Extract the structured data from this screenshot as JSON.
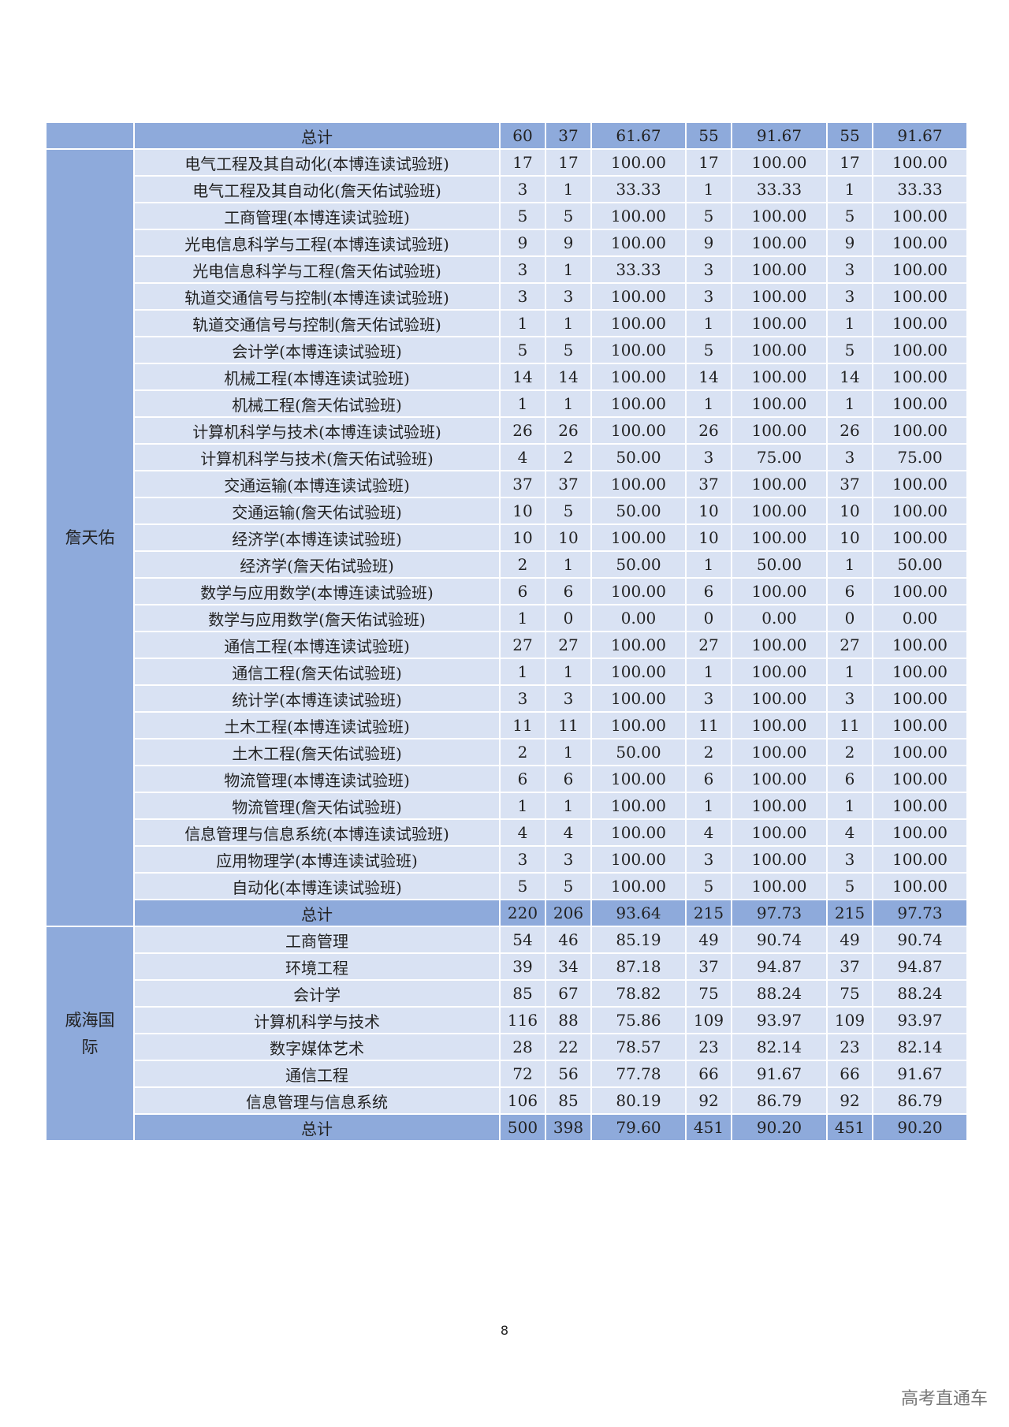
{
  "sections": [
    {
      "group": "",
      "rows": [],
      "total": [
        "总计",
        "60",
        "37",
        "61.67",
        "55",
        "91.67",
        "55",
        "91.67"
      ]
    },
    {
      "group": "詹天佑",
      "rows": [
        [
          "电气工程及其自动化(本博连读试验班)",
          "17",
          "17",
          "100.00",
          "17",
          "100.00",
          "17",
          "100.00"
        ],
        [
          "电气工程及其自动化(詹天佑试验班)",
          "3",
          "1",
          "33.33",
          "1",
          "33.33",
          "1",
          "33.33"
        ],
        [
          "工商管理(本博连读试验班)",
          "5",
          "5",
          "100.00",
          "5",
          "100.00",
          "5",
          "100.00"
        ],
        [
          "光电信息科学与工程(本博连读试验班)",
          "9",
          "9",
          "100.00",
          "9",
          "100.00",
          "9",
          "100.00"
        ],
        [
          "光电信息科学与工程(詹天佑试验班)",
          "3",
          "1",
          "33.33",
          "3",
          "100.00",
          "3",
          "100.00"
        ],
        [
          "轨道交通信号与控制(本博连读试验班)",
          "3",
          "3",
          "100.00",
          "3",
          "100.00",
          "3",
          "100.00"
        ],
        [
          "轨道交通信号与控制(詹天佑试验班)",
          "1",
          "1",
          "100.00",
          "1",
          "100.00",
          "1",
          "100.00"
        ],
        [
          "会计学(本博连读试验班)",
          "5",
          "5",
          "100.00",
          "5",
          "100.00",
          "5",
          "100.00"
        ],
        [
          "机械工程(本博连读试验班)",
          "14",
          "14",
          "100.00",
          "14",
          "100.00",
          "14",
          "100.00"
        ],
        [
          "机械工程(詹天佑试验班)",
          "1",
          "1",
          "100.00",
          "1",
          "100.00",
          "1",
          "100.00"
        ],
        [
          "计算机科学与技术(本博连读试验班)",
          "26",
          "26",
          "100.00",
          "26",
          "100.00",
          "26",
          "100.00"
        ],
        [
          "计算机科学与技术(詹天佑试验班)",
          "4",
          "2",
          "50.00",
          "3",
          "75.00",
          "3",
          "75.00"
        ],
        [
          "交通运输(本博连读试验班)",
          "37",
          "37",
          "100.00",
          "37",
          "100.00",
          "37",
          "100.00"
        ],
        [
          "交通运输(詹天佑试验班)",
          "10",
          "5",
          "50.00",
          "10",
          "100.00",
          "10",
          "100.00"
        ],
        [
          "经济学(本博连读试验班)",
          "10",
          "10",
          "100.00",
          "10",
          "100.00",
          "10",
          "100.00"
        ],
        [
          "经济学(詹天佑试验班)",
          "2",
          "1",
          "50.00",
          "1",
          "50.00",
          "1",
          "50.00"
        ],
        [
          "数学与应用数学(本博连读试验班)",
          "6",
          "6",
          "100.00",
          "6",
          "100.00",
          "6",
          "100.00"
        ],
        [
          "数学与应用数学(詹天佑试验班)",
          "1",
          "0",
          "0.00",
          "0",
          "0.00",
          "0",
          "0.00"
        ],
        [
          "通信工程(本博连读试验班)",
          "27",
          "27",
          "100.00",
          "27",
          "100.00",
          "27",
          "100.00"
        ],
        [
          "通信工程(詹天佑试验班)",
          "1",
          "1",
          "100.00",
          "1",
          "100.00",
          "1",
          "100.00"
        ],
        [
          "统计学(本博连读试验班)",
          "3",
          "3",
          "100.00",
          "3",
          "100.00",
          "3",
          "100.00"
        ],
        [
          "土木工程(本博连读试验班)",
          "11",
          "11",
          "100.00",
          "11",
          "100.00",
          "11",
          "100.00"
        ],
        [
          "土木工程(詹天佑试验班)",
          "2",
          "1",
          "50.00",
          "2",
          "100.00",
          "2",
          "100.00"
        ],
        [
          "物流管理(本博连读试验班)",
          "6",
          "6",
          "100.00",
          "6",
          "100.00",
          "6",
          "100.00"
        ],
        [
          "物流管理(詹天佑试验班)",
          "1",
          "1",
          "100.00",
          "1",
          "100.00",
          "1",
          "100.00"
        ],
        [
          "信息管理与信息系统(本博连读试验班)",
          "4",
          "4",
          "100.00",
          "4",
          "100.00",
          "4",
          "100.00"
        ],
        [
          "应用物理学(本博连读试验班)",
          "3",
          "3",
          "100.00",
          "3",
          "100.00",
          "3",
          "100.00"
        ],
        [
          "自动化(本博连读试验班)",
          "5",
          "5",
          "100.00",
          "5",
          "100.00",
          "5",
          "100.00"
        ]
      ],
      "total": [
        "总计",
        "220",
        "206",
        "93.64",
        "215",
        "97.73",
        "215",
        "97.73"
      ]
    },
    {
      "group": "威海国际",
      "rows": [
        [
          "工商管理",
          "54",
          "46",
          "85.19",
          "49",
          "90.74",
          "49",
          "90.74"
        ],
        [
          "环境工程",
          "39",
          "34",
          "87.18",
          "37",
          "94.87",
          "37",
          "94.87"
        ],
        [
          "会计学",
          "85",
          "67",
          "78.82",
          "75",
          "88.24",
          "75",
          "88.24"
        ],
        [
          "计算机科学与技术",
          "116",
          "88",
          "75.86",
          "109",
          "93.97",
          "109",
          "93.97"
        ],
        [
          "数字媒体艺术",
          "28",
          "22",
          "78.57",
          "23",
          "82.14",
          "23",
          "82.14"
        ],
        [
          "通信工程",
          "72",
          "56",
          "77.78",
          "66",
          "91.67",
          "66",
          "91.67"
        ],
        [
          "信息管理与信息系统",
          "106",
          "85",
          "80.19",
          "92",
          "86.79",
          "92",
          "86.79"
        ]
      ],
      "total": [
        "总计",
        "500",
        "398",
        "79.60",
        "451",
        "90.20",
        "451",
        "90.20"
      ]
    }
  ],
  "page_number": "8",
  "watermark": "高考直通车",
  "colors": {
    "total_row": "#8eaadb",
    "data_row": "#d9e2f3",
    "group_cell": "#8eaadb"
  }
}
